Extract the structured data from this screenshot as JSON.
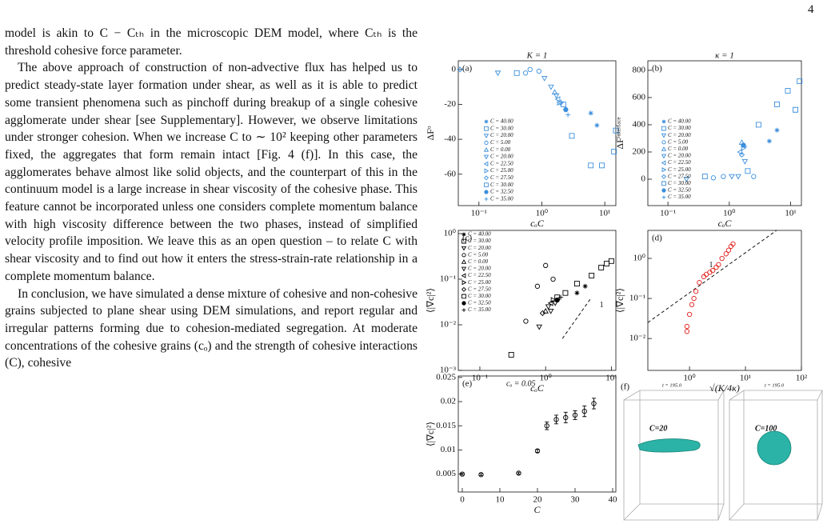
{
  "page_number": "4",
  "text": {
    "paragraphs": [
      "model is akin to C − Cₜₕ in the microscopic DEM model, where Cₜₕ is the threshold cohesive force parameter.",
      "The above approach of construction of non-advective flux has helped us to predict steady-state layer formation under shear, as well as it is able to predict some transient phenomena such as pinchoff during breakup of a single cohesive agglomerate under shear [see Supplementary]. However, we observe limitations under stronger cohesion. When we increase C to ∼ 10² keeping other parameters fixed, the aggregates that form remain intact [Fig. 4 (f)]. In this case, the agglomerates behave almost like solid objects, and the counterpart of this in the continuum model is a large increase in shear viscosity of the cohesive phase. This feature cannot be incorporated unless one considers complete momentum balance with high viscosity difference between the two phases, instead of simplified velocity profile imposition. We leave this as an open question – to relate C with shear viscosity and to find out how it enters the stress-strain-rate relationship in a complete momentum balance.",
      "In conclusion, we have simulated a dense mixture of cohesive and non-cohesive grains subjected to plane shear using DEM simulations, and report regular and irregular patterns forming due to cohesion-mediated segregation. At moderate concentrations of the cohesive grains (cₒ) and the strength of cohesive interactions (C), cohesive"
    ]
  },
  "chart_data": [
    {
      "type": "scatter",
      "panel_label": "(a)",
      "title": "K = 1",
      "xlabel": "cₒC",
      "ylabel": "ΔFᵒ",
      "color": "#3b8fdc",
      "xscale": "log",
      "yscale": "linear",
      "xlim": [
        0.047,
        15
      ],
      "ylim": [
        -78,
        5
      ],
      "xticks": [
        {
          "value": 0.1,
          "label": "10⁻¹"
        },
        {
          "value": 1,
          "label": "10⁰"
        },
        {
          "value": 10,
          "label": "10¹"
        }
      ],
      "yticks": [
        -60,
        -40,
        -20,
        0
      ],
      "series": [
        {
          "name": "C = 40.00",
          "marker": "star",
          "x": [
            6,
            7.5
          ],
          "y": [
            -25,
            -32
          ]
        },
        {
          "name": "C = 30.00",
          "marker": "square",
          "x": [
            0.4,
            3,
            6,
            9,
            14
          ],
          "y": [
            -2,
            -38,
            -55,
            -55,
            -47
          ]
        },
        {
          "name": "C = 20.00",
          "marker": "tri-down",
          "x": [
            0.2,
            1.1
          ],
          "y": [
            -2,
            -5
          ]
        },
        {
          "name": "C = 5.00",
          "marker": "circle",
          "x": [
            0.55,
            0.65,
            0.9
          ],
          "y": [
            -2,
            0,
            -1
          ]
        },
        {
          "name": "C = 0.00",
          "marker": "tri-up",
          "x": [
            1.6
          ],
          "y": [
            -13
          ]
        },
        {
          "name": "C = 20.00",
          "marker": "tri-down",
          "x": [
            1.4,
            1.7
          ],
          "y": [
            -10,
            -15
          ]
        },
        {
          "name": "C = 22.50",
          "marker": "tri-left",
          "x": [
            1.8
          ],
          "y": [
            -17
          ]
        },
        {
          "name": "C = 25.00",
          "marker": "tri-right",
          "x": [
            1.9
          ],
          "y": [
            -19
          ]
        },
        {
          "name": "C = 27.50",
          "marker": "diamond",
          "x": [
            0.05,
            2.0
          ],
          "y": [
            0,
            -19
          ]
        },
        {
          "name": "C = 30.00",
          "marker": "square",
          "x": [
            2.2,
            15
          ],
          "y": [
            -20,
            -35
          ]
        },
        {
          "name": "C = 32.50",
          "marker": "dot",
          "x": [
            2.4
          ],
          "y": [
            -23
          ]
        },
        {
          "name": "C = 35.00",
          "marker": "plus",
          "x": [
            2.6
          ],
          "y": [
            -26
          ]
        }
      ]
    },
    {
      "type": "scatter",
      "panel_label": "(b)",
      "title": "κ = 1",
      "xlabel": "cₒC",
      "ylabel": "ΔFⁱⁿᵗᵉʳᶠᵃᶜᵉ",
      "color": "#3b8fdc",
      "xscale": "log",
      "yscale": "linear",
      "xlim": [
        0.047,
        15
      ],
      "ylim": [
        -194,
        870
      ],
      "xticks": [
        {
          "value": 0.1,
          "label": "10⁻¹"
        },
        {
          "value": 1,
          "label": "10⁰"
        },
        {
          "value": 10,
          "label": "10¹"
        }
      ],
      "yticks": [
        0,
        200,
        400,
        600,
        800
      ],
      "series": [
        {
          "name": "C = 40.00",
          "marker": "star",
          "x": [
            6,
            4.5
          ],
          "y": [
            360,
            280
          ]
        },
        {
          "name": "C = 30.00",
          "marker": "square",
          "x": [
            0.4,
            3,
            6,
            9,
            14
          ],
          "y": [
            20,
            400,
            550,
            650,
            720
          ]
        },
        {
          "name": "C = 20.00",
          "marker": "tri-down",
          "x": [
            0.2,
            1.1
          ],
          "y": [
            0,
            20
          ]
        },
        {
          "name": "C = 5.00",
          "marker": "circle",
          "x": [
            0.55,
            0.8,
            2.5
          ],
          "y": [
            10,
            20,
            20
          ]
        },
        {
          "name": "C = 0.00",
          "marker": "tri-up",
          "x": [
            1.6
          ],
          "y": [
            270
          ]
        },
        {
          "name": "C = 20.00",
          "marker": "tri-down",
          "x": [
            1.4,
            1.8
          ],
          "y": [
            20,
            130
          ]
        },
        {
          "name": "C = 22.50",
          "marker": "tri-left",
          "x": [
            1.5
          ],
          "y": [
            200
          ]
        },
        {
          "name": "C = 25.00",
          "marker": "tri-right",
          "x": [
            1.7
          ],
          "y": [
            230
          ]
        },
        {
          "name": "C = 27.50",
          "marker": "diamond",
          "x": [
            1.6
          ],
          "y": [
            180
          ]
        },
        {
          "name": "C = 30.00",
          "marker": "square",
          "x": [
            2,
            12
          ],
          "y": [
            60,
            510
          ]
        },
        {
          "name": "C = 32.50",
          "marker": "dot",
          "x": [
            1.7
          ],
          "y": [
            250
          ]
        },
        {
          "name": "C = 35.00",
          "marker": "plus",
          "x": [
            1.8
          ],
          "y": [
            240
          ]
        }
      ]
    },
    {
      "type": "scatter",
      "panel_label": "(c)",
      "xlabel": "cₒC",
      "ylabel": "⟨|∇c|²⟩",
      "color": "#000000",
      "xscale": "log",
      "yscale": "log",
      "xlim": [
        0.047,
        11.7
      ],
      "ylim": [
        0.001,
        1.175
      ],
      "xticks": [
        {
          "value": 0.1,
          "label": "10⁻¹"
        },
        {
          "value": 1,
          "label": "10⁰"
        },
        {
          "value": 10,
          "label": "10¹"
        }
      ],
      "yticks": [
        {
          "value": 0.001,
          "label": "10⁻³"
        },
        {
          "value": 0.01,
          "label": "10⁻²"
        },
        {
          "value": 0.1,
          "label": "10⁻¹"
        },
        {
          "value": 1,
          "label": "10⁰"
        }
      ],
      "fit_line": {
        "x": [
          1.8,
          5
        ],
        "y": [
          0.005,
          0.04
        ],
        "label": "1"
      },
      "series": [
        {
          "name": "C = 40.00",
          "marker": "star",
          "x": [
            3,
            4
          ],
          "y": [
            0.05,
            0.07
          ]
        },
        {
          "name": "C = 30.00",
          "marker": "square",
          "x": [
            0.3,
            1.5,
            3,
            5,
            7,
            8.5,
            10
          ],
          "y": [
            0.0022,
            0.04,
            0.08,
            0.12,
            0.18,
            0.22,
            0.25
          ]
        },
        {
          "name": "C = 20.00",
          "marker": "tri-down",
          "x": [
            0.8,
            1.2
          ],
          "y": [
            0.009,
            0.02
          ]
        },
        {
          "name": "C = 5.00",
          "marker": "circle",
          "x": [
            0.5,
            0.75,
            1.0,
            1.3
          ],
          "y": [
            0.012,
            0.07,
            0.2,
            0.1
          ]
        },
        {
          "name": "C = 0.00",
          "marker": "tri-up",
          "x": [
            1.0
          ],
          "y": [
            0.02
          ]
        },
        {
          "name": "C = 20.00",
          "marker": "tri-down",
          "x": [
            1.1,
            1.4
          ],
          "y": [
            0.025,
            0.03
          ]
        },
        {
          "name": "C = 22.50",
          "marker": "tri-left",
          "x": [
            1.2
          ],
          "y": [
            0.03
          ]
        },
        {
          "name": "C = 25.00",
          "marker": "tri-right",
          "x": [
            1.3
          ],
          "y": [
            0.035
          ]
        },
        {
          "name": "C = 27.50",
          "marker": "diamond",
          "x": [
            0.9
          ],
          "y": [
            0.018
          ]
        },
        {
          "name": "C = 30.00",
          "marker": "square",
          "x": [
            2
          ],
          "y": [
            0.05
          ]
        },
        {
          "name": "C = 32.50",
          "marker": "dot",
          "x": [
            1.5
          ],
          "y": [
            0.035
          ]
        },
        {
          "name": "C = 35.00",
          "marker": "plus",
          "x": [
            1.7
          ],
          "y": [
            0.04
          ]
        }
      ]
    },
    {
      "type": "scatter",
      "panel_label": "(d)",
      "xlabel": "√(K/4κ)",
      "ylabel": "⟨|∇c|²⟩",
      "color": "#e0201b",
      "xscale": "log",
      "yscale": "log",
      "xlim": [
        0.18,
        100
      ],
      "ylim": [
        0.0016,
        5
      ],
      "xticks": [
        {
          "value": 1,
          "label": "10⁰"
        },
        {
          "value": 10,
          "label": "10¹"
        },
        {
          "value": 100,
          "label": "10²"
        }
      ],
      "yticks": [
        {
          "value": 0.01,
          "label": "10⁻²"
        },
        {
          "value": 0.1,
          "label": "10⁻¹"
        },
        {
          "value": 1,
          "label": "10⁰"
        }
      ],
      "fit_line": {
        "x": [
          0.18,
          36
        ],
        "y": [
          0.025,
          5
        ],
        "label": "1"
      },
      "series": [
        {
          "marker": "circle",
          "x": [
            0.9,
            0.9,
            1,
            1.1,
            1.2,
            1.3,
            1.5,
            1.8,
            2,
            2.3,
            2.6,
            3,
            3.3,
            3.8,
            4.5,
            5,
            5.5,
            6
          ],
          "y": [
            0.015,
            0.02,
            0.04,
            0.07,
            0.1,
            0.15,
            0.25,
            0.35,
            0.4,
            0.45,
            0.5,
            0.6,
            0.7,
            1,
            1.3,
            1.6,
            2,
            2.3
          ]
        }
      ]
    },
    {
      "type": "scatter",
      "panel_label": "(e)",
      "xlabel": "C",
      "ylabel": "⟨|∇c|²⟩",
      "annotation": "cₒ = 0.05",
      "color": "#000000",
      "xscale": "linear",
      "yscale": "linear",
      "xlim": [
        -1.06,
        40.85
      ],
      "ylim": [
        0.0013,
        0.0253
      ],
      "xticks": [
        0,
        10,
        20,
        30,
        40
      ],
      "yticks": [
        0.005,
        0.01,
        0.015,
        0.02,
        0.025
      ],
      "series": [
        {
          "marker": "circle",
          "x": [
            0,
            5,
            15,
            20,
            22.5,
            25,
            27.5,
            30,
            32.5,
            35
          ],
          "y": [
            0.005,
            0.0049,
            0.0052,
            0.0098,
            0.015,
            0.0163,
            0.0167,
            0.0172,
            0.018,
            0.0196
          ],
          "errors": [
            0.0002,
            0.0002,
            0.0002,
            0.0003,
            0.0008,
            0.0009,
            0.0011,
            0.0009,
            0.0011,
            0.0011
          ]
        }
      ]
    }
  ],
  "panel_f": {
    "panel_label": "(f)",
    "time_labels": [
      "t = 195.0",
      "t = 195.0"
    ],
    "labels": [
      "C=20",
      "C=100"
    ]
  }
}
